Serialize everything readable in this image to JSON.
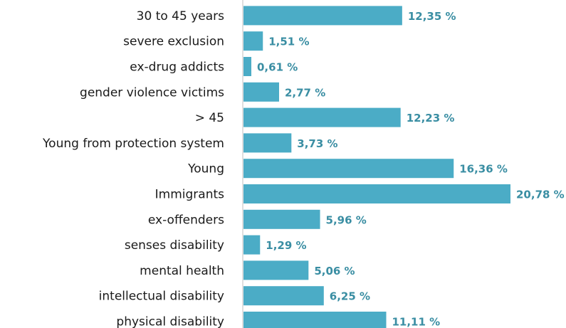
{
  "chart_data": {
    "type": "bar",
    "orientation": "horizontal",
    "categories": [
      "30 to 45 years",
      "severe exclusion",
      "ex-drug addicts",
      "gender violence victims",
      "> 45",
      "Young from protection system",
      "Young",
      "Immigrants",
      "ex-offenders",
      "senses disability",
      "mental health",
      "intellectual disability",
      "physical disability"
    ],
    "values": [
      12.35,
      1.51,
      0.61,
      2.77,
      12.23,
      3.73,
      16.36,
      20.78,
      5.96,
      1.29,
      5.06,
      6.25,
      11.11
    ],
    "value_labels": [
      "12,35 %",
      "1,51 %",
      "0,61 %",
      "2,77 %",
      "12,23 %",
      "3,73 %",
      "16,36 %",
      "20,78 %",
      "5,96 %",
      "1,29 %",
      "5,06 %",
      "6,25 %",
      "11,11 %"
    ],
    "title": "",
    "xlabel": "",
    "ylabel": "",
    "grid": false,
    "legend": "none",
    "bar_color": "#4bacc6",
    "label_color": "#3a8ea3"
  }
}
